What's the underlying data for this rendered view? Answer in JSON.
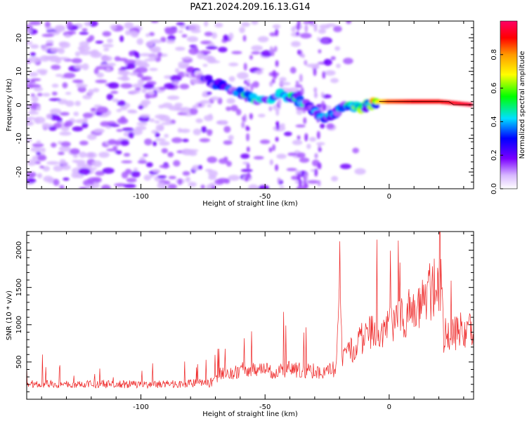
{
  "figure": {
    "title": "PAZ1.2024.209.16.13.G14"
  },
  "chart_data": [
    {
      "type": "heatmap",
      "title": "PAZ1.2024.209.16.13.G14",
      "xlabel": "Height of straight line (km)",
      "ylabel": "Frequency (Hz)",
      "xlim": [
        -146,
        34
      ],
      "ylim": [
        -25,
        25
      ],
      "x_ticks": [
        -100,
        -50,
        0
      ],
      "y_ticks": [
        -20,
        -10,
        0,
        10,
        20
      ],
      "grid": false,
      "colorbar": {
        "label": "Normalized spectral amplitude",
        "range": [
          0,
          1
        ],
        "ticks": [
          0.0,
          0.2,
          0.4,
          0.6,
          0.8
        ],
        "colors": [
          "#ffffff",
          "#7a00ff",
          "#0000ff",
          "#00e0ff",
          "#00ff00",
          "#ffff00",
          "#ff9900",
          "#ff0000",
          "#ff0066"
        ]
      },
      "trace": {
        "x": [
          -80,
          -72,
          -65,
          -58,
          -50,
          -44,
          -38,
          -33,
          -28,
          -24,
          -20,
          -16,
          -12,
          -8,
          -4,
          0,
          10,
          20,
          34
        ],
        "freq": [
          10,
          7,
          5,
          3,
          1,
          3,
          2,
          0,
          -3,
          -4,
          -1,
          0,
          -1,
          0,
          1,
          1,
          1,
          1,
          0
        ],
        "amplitude": [
          0.15,
          0.25,
          0.35,
          0.4,
          0.35,
          0.4,
          0.45,
          0.4,
          0.35,
          0.35,
          0.4,
          0.45,
          0.5,
          0.6,
          0.7,
          0.85,
          0.9,
          0.9,
          0.95
        ]
      }
    },
    {
      "type": "line",
      "xlabel": "Height of straight line (km)",
      "ylabel": "SNR (10 * v/v)",
      "xlim": [
        -146,
        34
      ],
      "ylim": [
        0,
        2250
      ],
      "x_ticks": [
        -100,
        -50,
        0
      ],
      "y_ticks": [
        500,
        1000,
        1500,
        2000
      ],
      "grid": false,
      "color": "#ee2222",
      "series": [
        {
          "x": [
            -146,
            -130,
            -120,
            -110,
            -100,
            -90,
            -80,
            -72,
            -68,
            -62,
            -55,
            -50,
            -45,
            -40,
            -35,
            -30,
            -25,
            -21,
            -20,
            -19,
            -14,
            -10,
            -6,
            -2,
            2,
            6,
            10,
            14,
            18,
            21,
            22,
            26,
            30,
            34
          ],
          "y": [
            200,
            200,
            210,
            200,
            200,
            200,
            210,
            220,
            340,
            370,
            420,
            380,
            380,
            400,
            390,
            380,
            380,
            420,
            2200,
            500,
            700,
            850,
            900,
            950,
            1000,
            1100,
            1250,
            1350,
            1500,
            1550,
            850,
            900,
            920,
            950
          ]
        }
      ]
    }
  ]
}
